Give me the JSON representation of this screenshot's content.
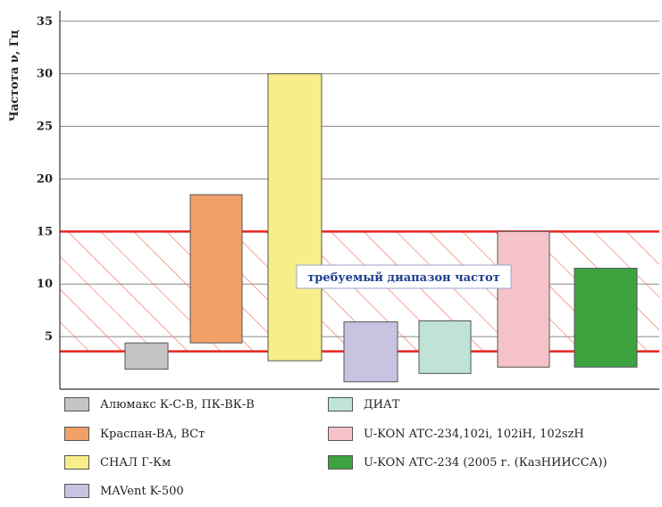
{
  "chart_data": {
    "type": "bar",
    "subtype": "floating-range",
    "ylabel": "Частота ν, Гц",
    "ylim": [
      0,
      36
    ],
    "yticks": [
      5,
      10,
      15,
      20,
      25,
      30,
      35
    ],
    "grid": true,
    "required_range": {
      "low": 3.6,
      "high": 15,
      "label": "требуемый диапазон частот",
      "color": "#e8231e"
    },
    "series": [
      {
        "name": "Алюмакс К-С-В, ПК-ВК-В",
        "low": 1.9,
        "high": 4.4,
        "color": "#c4c4c4"
      },
      {
        "name": "Краспан-ВА, ВСт",
        "low": 4.4,
        "high": 18.5,
        "color": "#f2a06a"
      },
      {
        "name": "СНАЛ Г-Км",
        "low": 2.7,
        "high": 30.0,
        "color": "#f7ee8a"
      },
      {
        "name": "MAVent K-500",
        "low": 0.7,
        "high": 6.4,
        "color": "#c7c3e0"
      },
      {
        "name": "ДИАТ",
        "low": 1.5,
        "high": 6.5,
        "color": "#bfe3d6"
      },
      {
        "name": "U-KON ATC-234,102i, 102iH, 102szH",
        "low": 2.1,
        "high": 15.0,
        "color": "#f5c2c8"
      },
      {
        "name": "U-KON ATC-234 (2005 г. (КазНИИССА))",
        "low": 2.1,
        "high": 11.5,
        "color": "#3da33f"
      }
    ]
  }
}
